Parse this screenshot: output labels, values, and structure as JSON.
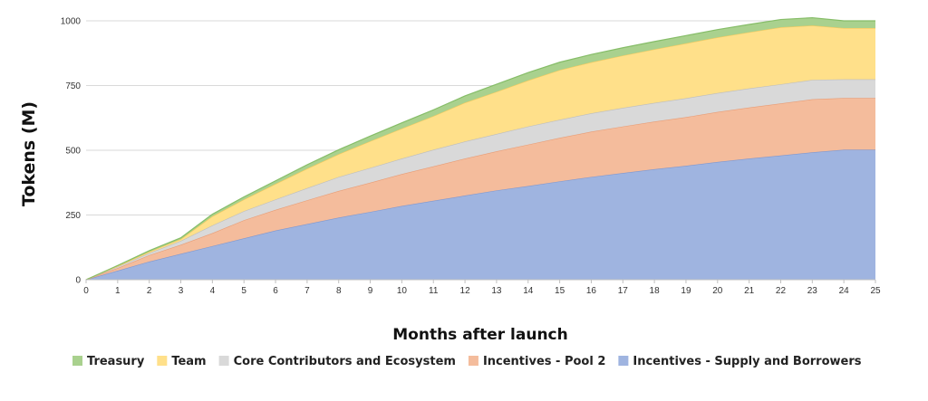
{
  "chart_data": {
    "type": "area",
    "stacked": true,
    "title": "",
    "xlabel": "Months after launch",
    "ylabel": "Tokens (M)",
    "x": [
      0,
      1,
      2,
      3,
      4,
      5,
      6,
      7,
      8,
      9,
      10,
      11,
      12,
      13,
      14,
      15,
      16,
      17,
      18,
      19,
      20,
      21,
      22,
      23,
      24,
      25
    ],
    "ylim": [
      0,
      1000
    ],
    "yticks": [
      0,
      250,
      500,
      750,
      1000
    ],
    "grid": "horizontal",
    "legend_position": "bottom",
    "series": [
      {
        "name": "Incentives - Supply and Borrowers",
        "color": "#9fb4e0",
        "line_color": "#7f97cf",
        "values": [
          0,
          35,
          70,
          100,
          130,
          160,
          190,
          215,
          240,
          262,
          285,
          305,
          325,
          345,
          362,
          380,
          397,
          412,
          427,
          440,
          455,
          468,
          480,
          492,
          502,
          502
        ]
      },
      {
        "name": "Incentives - Pool 2",
        "color": "#f4bc9c",
        "line_color": "#e89d76",
        "values": [
          0,
          10,
          25,
          35,
          50,
          70,
          80,
          92,
          103,
          113,
          123,
          133,
          143,
          151,
          160,
          168,
          175,
          180,
          184,
          188,
          193,
          197,
          201,
          205,
          200,
          200
        ]
      },
      {
        "name": "Core Contributors and Ecosystem",
        "color": "#d9d9d9",
        "line_color": "#bdbdbd",
        "values": [
          0,
          5,
          8,
          15,
          30,
          35,
          40,
          47,
          54,
          57,
          60,
          64,
          66,
          67,
          70,
          70,
          71,
          72,
          72,
          73,
          73,
          74,
          74,
          75,
          72,
          72
        ]
      },
      {
        "name": "Team",
        "color": "#ffe08a",
        "line_color": "#f4c95d",
        "values": [
          0,
          3,
          5,
          7,
          35,
          45,
          60,
          75,
          88,
          103,
          116,
          130,
          150,
          163,
          178,
          192,
          197,
          202,
          207,
          212,
          215,
          217,
          220,
          210,
          198,
          198
        ]
      },
      {
        "name": "Treasury",
        "color": "#a9d18e",
        "line_color": "#86bd68",
        "values": [
          0,
          2,
          4,
          5,
          8,
          10,
          12,
          15,
          17,
          20,
          22,
          24,
          26,
          29,
          30,
          30,
          30,
          30,
          30,
          30,
          30,
          30,
          30,
          30,
          28,
          28
        ]
      }
    ],
    "legend_order": [
      "Treasury",
      "Team",
      "Core Contributors and Ecosystem",
      "Incentives - Pool 2",
      "Incentives - Supply and Borrowers"
    ]
  }
}
